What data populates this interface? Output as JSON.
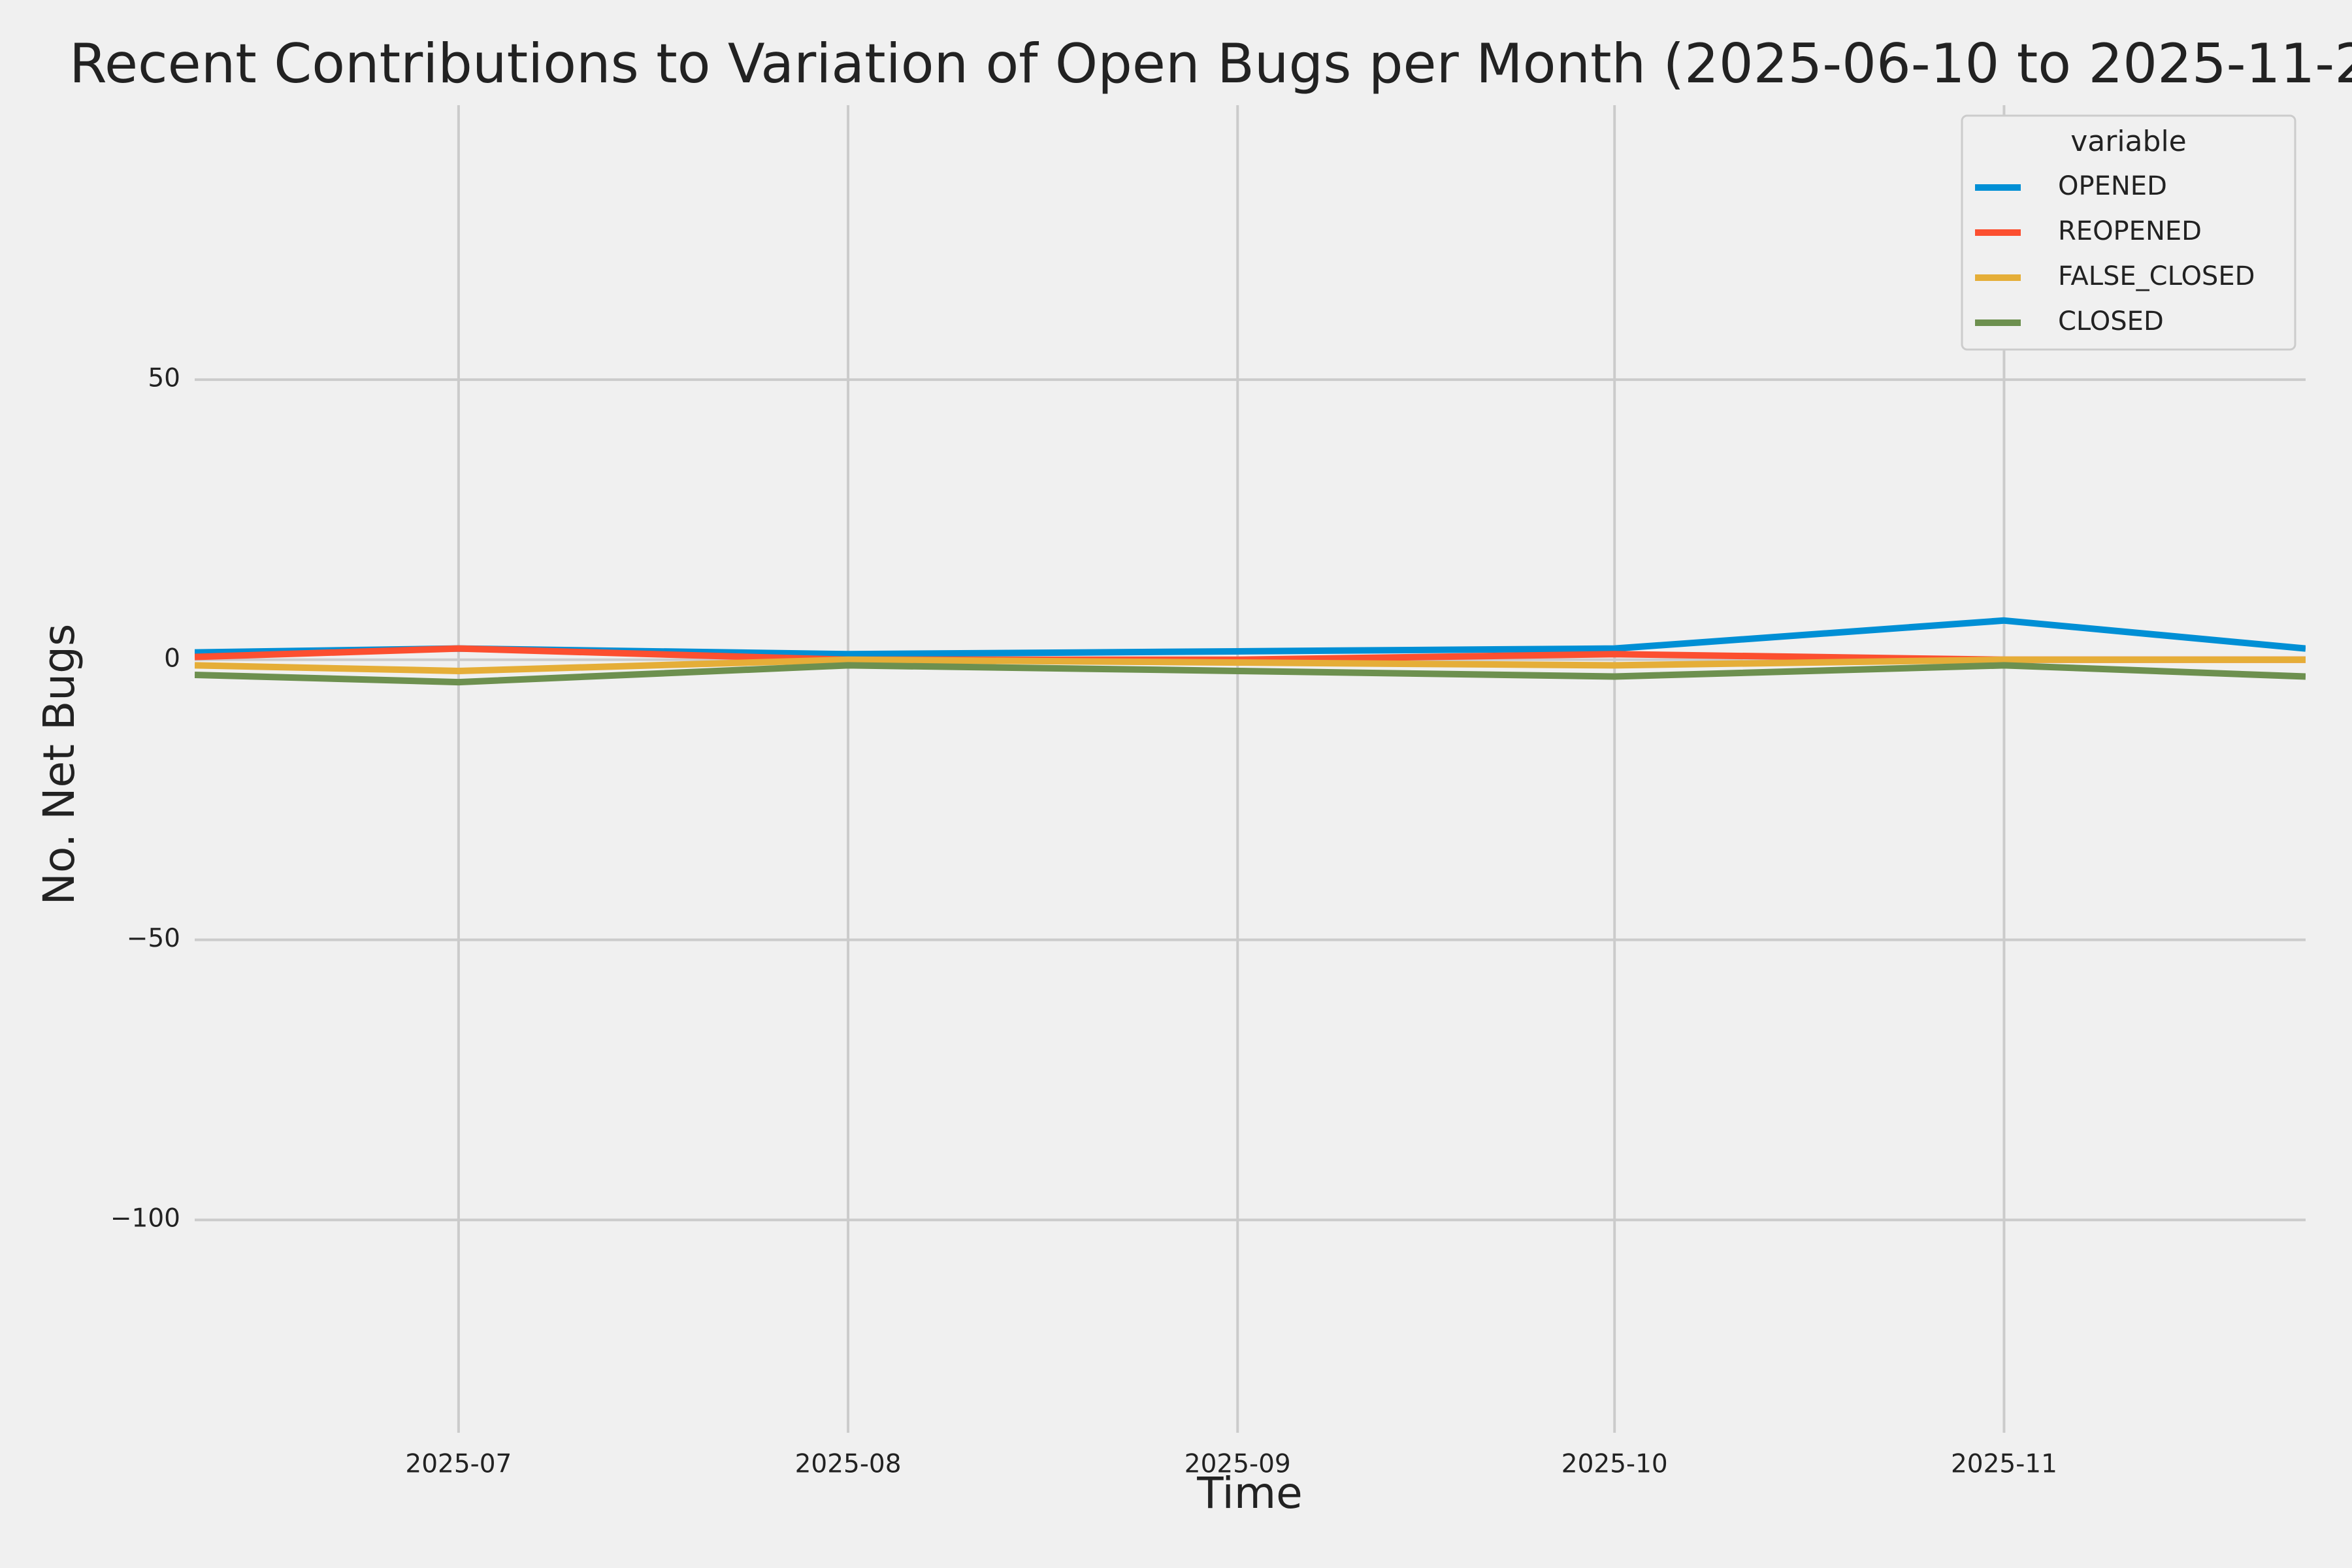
{
  "chart_data": {
    "type": "line",
    "title": "Recent Contributions to Variation of Open Bugs per Month (2025-06-10 to 2025-11-2",
    "x_label": "Time",
    "y_label": "No. Net Bugs",
    "x": [
      "2025-06-10",
      "2025-07",
      "2025-08",
      "2025-09",
      "2025-10",
      "2025-11",
      "2025-11-25"
    ],
    "xlim": [
      "2025-06-10",
      "2025-11-25"
    ],
    "xticks": [
      "2025-07",
      "2025-08",
      "2025-09",
      "2025-10",
      "2025-11"
    ],
    "ylim": [
      -138,
      99
    ],
    "yticks": [
      {
        "value": -100,
        "label": "−100"
      },
      {
        "value": -50,
        "label": "−50"
      },
      0,
      50
    ],
    "grid": true,
    "legend_title": "variable",
    "legend_position": "upper right",
    "series": [
      {
        "name": "OPENED",
        "color": "#008fd5",
        "values": [
          1.3,
          2,
          1,
          1.5,
          2,
          7,
          2
        ]
      },
      {
        "name": "REOPENED",
        "color": "#fc4f30",
        "values": [
          0.5,
          2,
          0,
          0,
          1,
          0,
          0
        ]
      },
      {
        "name": "FALSE_CLOSED",
        "color": "#e5ae38",
        "values": [
          -1,
          -2,
          0,
          -0.5,
          -1,
          0,
          0
        ]
      },
      {
        "name": "CLOSED",
        "color": "#6d904f",
        "values": [
          -2.7,
          -4,
          -1,
          -2,
          -3,
          -1,
          -3
        ]
      }
    ]
  }
}
